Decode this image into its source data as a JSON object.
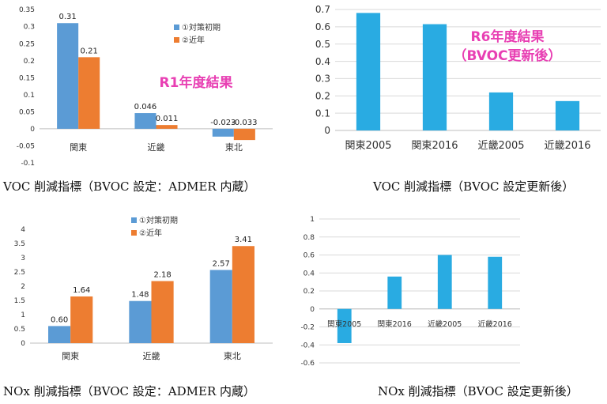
{
  "charts": [
    {
      "id": "voc-r1",
      "type": "bar",
      "categories": [
        "関東",
        "近畿",
        "東北"
      ],
      "series": [
        {
          "name": "①対策初期",
          "color": "#5b9bd5",
          "values": [
            0.31,
            0.046,
            -0.023
          ],
          "labels": [
            "0.31",
            "0.046",
            "-0.023"
          ]
        },
        {
          "name": "②近年",
          "color": "#ed7d31",
          "values": [
            0.21,
            0.011,
            -0.033
          ],
          "labels": [
            "0.21",
            "0.011",
            "-0.033"
          ]
        }
      ],
      "ylim": [
        -0.1,
        0.35
      ],
      "yticks": [
        -0.1,
        -0.05,
        0,
        0.05,
        0.1,
        0.15,
        0.2,
        0.25,
        0.3,
        0.35
      ],
      "ytick_labels": [
        "-0.1",
        "-0.05",
        "0",
        "0.05",
        "0.1",
        "0.15",
        "0.2",
        "0.25",
        "0.3",
        "0.35"
      ],
      "annotation": "R1年度結果",
      "annotation_color": "#e83fb3",
      "legend": "top-right",
      "caption": "VOC 削減指標（BVOC 設定：ADMER 内蔵）"
    },
    {
      "id": "voc-r6",
      "type": "bar",
      "categories": [
        "関東2005",
        "関東2016",
        "近畿2005",
        "近畿2016"
      ],
      "series": [
        {
          "color": "#29abe2",
          "values": [
            0.68,
            0.615,
            0.22,
            0.17
          ]
        }
      ],
      "ylim": [
        0,
        0.7
      ],
      "yticks": [
        0,
        0.1,
        0.2,
        0.3,
        0.4,
        0.5,
        0.6,
        0.7
      ],
      "ytick_labels": [
        "0",
        "0.1",
        "0.2",
        "0.3",
        "0.4",
        "0.5",
        "0.6",
        "0.7"
      ],
      "annotation_lines": [
        "R6年度結果",
        "（BVOC更新後）"
      ],
      "annotation_color": "#e83fb3",
      "caption": "VOC 削減指標（BVOC 設定更新後）"
    },
    {
      "id": "nox-r1",
      "type": "bar",
      "categories": [
        "関東",
        "近畿",
        "東北"
      ],
      "series": [
        {
          "name": "①対策初期",
          "color": "#5b9bd5",
          "values": [
            0.6,
            1.48,
            2.57
          ],
          "labels": [
            "0.60",
            "1.48",
            "2.57"
          ]
        },
        {
          "name": "②近年",
          "color": "#ed7d31",
          "values": [
            1.64,
            2.18,
            3.41
          ],
          "labels": [
            "1.64",
            "2.18",
            "3.41"
          ]
        }
      ],
      "ylim": [
        0,
        4
      ],
      "yticks": [
        0,
        0.5,
        1,
        1.5,
        2,
        2.5,
        3,
        3.5,
        4
      ],
      "ytick_labels": [
        "0",
        "0.5",
        "1",
        "1.5",
        "2",
        "2.5",
        "3",
        "3.5",
        "4"
      ],
      "legend": "top-center",
      "caption": "NOx 削減指標（BVOC 設定：ADMER 内蔵）"
    },
    {
      "id": "nox-r6",
      "type": "bar",
      "categories": [
        "関東2005",
        "関東2016",
        "近畿2005",
        "近畿2016"
      ],
      "series": [
        {
          "color": "#29abe2",
          "values": [
            -0.38,
            0.36,
            0.6,
            0.58
          ]
        }
      ],
      "ylim": [
        -0.6,
        1
      ],
      "yticks": [
        -0.6,
        -0.4,
        -0.2,
        0,
        0.2,
        0.4,
        0.6,
        0.8,
        1
      ],
      "ytick_labels": [
        "-0.6",
        "-0.4",
        "-0.2",
        "0",
        "0.2",
        "0.4",
        "0.6",
        "0.8",
        "1"
      ],
      "caption": "NOx 削減指標（BVOC 設定更新後）"
    }
  ]
}
